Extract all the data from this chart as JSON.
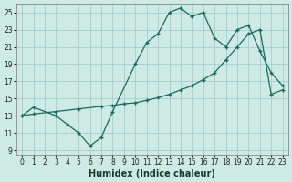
{
  "xlabel": "Humidex (Indice chaleur)",
  "background_color": "#cdeae5",
  "grid_color": "#aacdc8",
  "line_color": "#1a6b5a",
  "xlim": [
    -0.5,
    23.5
  ],
  "ylim": [
    8.5,
    26.0
  ],
  "xticks": [
    0,
    1,
    2,
    3,
    4,
    5,
    6,
    7,
    8,
    9,
    10,
    11,
    12,
    13,
    14,
    15,
    16,
    17,
    18,
    19,
    20,
    21,
    22,
    23
  ],
  "yticks": [
    9,
    11,
    13,
    15,
    17,
    19,
    21,
    23,
    25
  ],
  "line1_x": [
    0,
    1,
    3,
    4,
    5,
    6,
    7,
    8,
    10,
    11,
    12,
    13,
    14,
    15,
    16,
    17,
    18,
    19,
    20,
    21,
    22,
    23
  ],
  "line1_y": [
    13,
    14,
    13,
    12,
    11,
    9.5,
    10.5,
    13.5,
    19,
    21.5,
    22.5,
    25,
    25.5,
    24.5,
    25,
    22,
    21,
    23,
    23.5,
    20.5,
    18,
    16.5
  ],
  "line2_x": [
    0,
    1,
    3,
    5,
    7,
    8,
    9,
    10,
    11,
    12,
    13,
    14,
    15,
    16,
    17,
    18,
    19,
    20,
    21,
    22,
    23
  ],
  "line2_y": [
    13,
    13.2,
    13.5,
    13.8,
    14.1,
    14.2,
    14.4,
    14.5,
    14.8,
    15.1,
    15.5,
    16.0,
    16.5,
    17.2,
    18.0,
    19.5,
    21.0,
    22.5,
    23.0,
    15.5,
    16.0
  ],
  "xlabel_fontsize": 7,
  "tick_fontsize": 5.5
}
